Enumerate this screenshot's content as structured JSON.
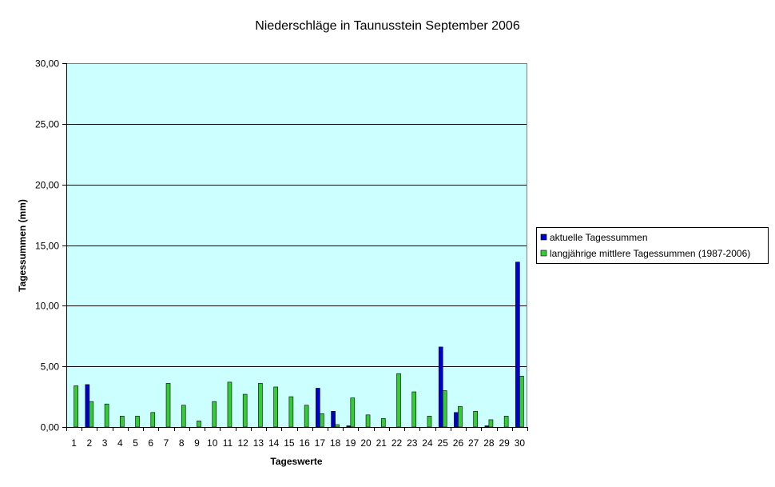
{
  "chart_data": {
    "type": "bar",
    "title": "Niederschläge in Taunusstein  September  2006",
    "xlabel": "Tageswerte",
    "ylabel": "Tagessummen (mm)",
    "ylim": [
      0,
      30
    ],
    "y_ticks": [
      "0,00",
      "5,00",
      "10,00",
      "15,00",
      "20,00",
      "25,00",
      "30,00"
    ],
    "grid": true,
    "legend_position": "right",
    "plot_background": "#CCFFFF",
    "categories": [
      "1",
      "2",
      "3",
      "4",
      "5",
      "6",
      "7",
      "8",
      "9",
      "10",
      "11",
      "12",
      "13",
      "14",
      "15",
      "16",
      "17",
      "18",
      "19",
      "20",
      "21",
      "22",
      "23",
      "24",
      "25",
      "26",
      "27",
      "28",
      "29",
      "30"
    ],
    "series": [
      {
        "name": "aktuelle Tagessummen",
        "color": "#0000CC",
        "values": [
          0,
          3.5,
          0,
          0,
          0,
          0,
          0,
          0,
          0,
          0,
          0,
          0,
          0,
          0,
          0,
          0,
          3.2,
          1.3,
          0.1,
          0,
          0,
          0,
          0,
          0,
          6.6,
          1.2,
          0,
          0.1,
          0,
          13.6
        ]
      },
      {
        "name": "langjährige mittlere Tagessummen (1987-2006)",
        "color": "#33CC33",
        "values": [
          3.4,
          2.1,
          1.9,
          0.9,
          0.9,
          1.2,
          3.6,
          1.8,
          0.5,
          2.1,
          3.7,
          2.7,
          3.6,
          3.3,
          2.5,
          1.8,
          1.1,
          0.2,
          2.4,
          1.0,
          0.7,
          4.4,
          2.9,
          0.9,
          3.0,
          1.7,
          1.3,
          0.6,
          0.9,
          4.2
        ]
      }
    ]
  }
}
